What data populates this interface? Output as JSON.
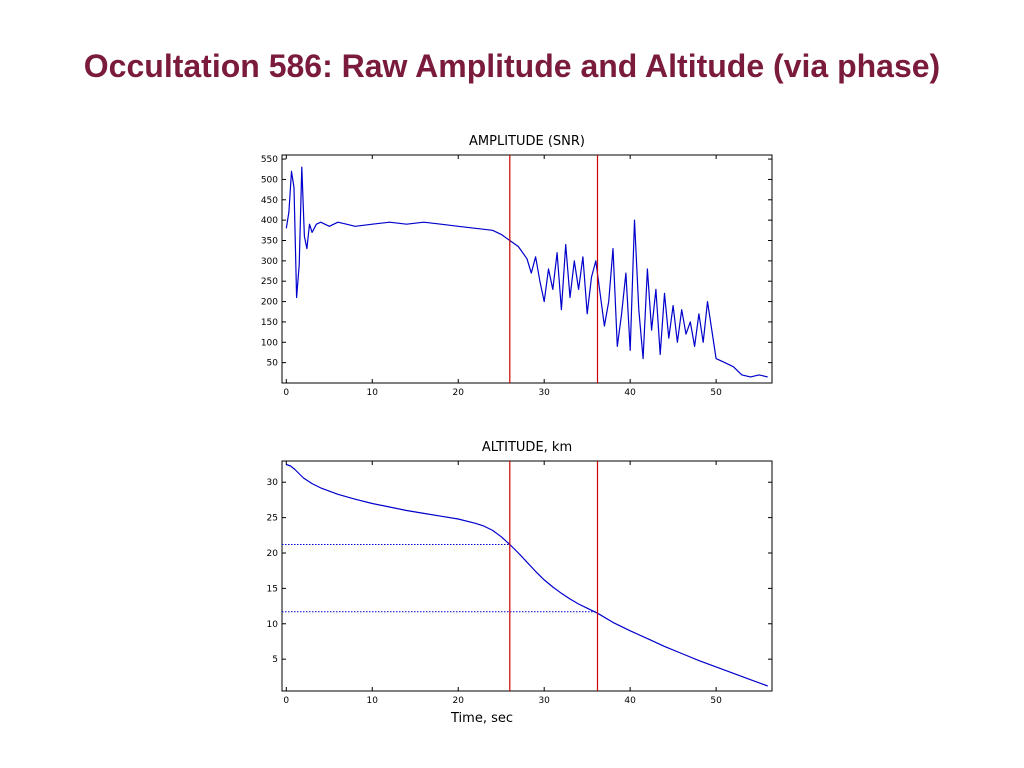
{
  "slide": {
    "title": "Occultation 586: Raw Amplitude and Altitude (via phase)",
    "title_color": "#7a1a3c"
  },
  "colors": {
    "series": "#0000cc",
    "marker": "#cc0000"
  },
  "chart_data": [
    {
      "type": "line",
      "title": "AMPLITUDE (SNR)",
      "xlabel": "",
      "ylabel": "",
      "xlim": [
        -0.5,
        56.5
      ],
      "ylim": [
        0,
        560
      ],
      "xticks": [
        0,
        10,
        20,
        30,
        40,
        50
      ],
      "yticks": [
        50,
        100,
        150,
        200,
        250,
        300,
        350,
        400,
        450,
        500,
        550
      ],
      "grid": false,
      "vertical_markers": [
        26,
        36.2
      ],
      "series": [
        {
          "x": [
            0,
            0.3,
            0.6,
            0.9,
            1.2,
            1.5,
            1.8,
            2.1,
            2.4,
            2.7,
            3,
            3.5,
            4,
            5,
            6,
            7,
            8,
            10,
            12,
            14,
            16,
            18,
            20,
            22,
            24,
            25,
            26,
            27,
            28,
            28.5,
            29,
            29.5,
            30,
            30.5,
            31,
            31.5,
            32,
            32.5,
            33,
            33.5,
            34,
            34.5,
            35,
            35.5,
            36,
            36.5,
            37,
            37.5,
            38,
            38.5,
            39,
            39.5,
            40,
            40.5,
            41,
            41.5,
            42,
            42.5,
            43,
            43.5,
            44,
            44.5,
            45,
            45.5,
            46,
            46.5,
            47,
            47.5,
            48,
            48.5,
            49,
            49.5,
            50,
            51,
            52,
            53,
            54,
            55,
            56
          ],
          "values": [
            380,
            420,
            520,
            480,
            210,
            290,
            530,
            360,
            330,
            390,
            370,
            390,
            395,
            385,
            395,
            390,
            385,
            390,
            395,
            390,
            395,
            390,
            385,
            380,
            375,
            365,
            350,
            335,
            305,
            270,
            310,
            250,
            200,
            280,
            230,
            320,
            180,
            340,
            210,
            300,
            230,
            310,
            170,
            260,
            300,
            220,
            140,
            200,
            330,
            90,
            170,
            270,
            80,
            400,
            180,
            60,
            280,
            130,
            230,
            70,
            220,
            110,
            190,
            100,
            180,
            120,
            150,
            90,
            170,
            100,
            200,
            130,
            60,
            50,
            40,
            20,
            15,
            20,
            15
          ]
        }
      ]
    },
    {
      "type": "line",
      "title": "ALTITUDE, km",
      "xlabel": "Time, sec",
      "ylabel": "",
      "xlim": [
        -0.5,
        56.5
      ],
      "ylim": [
        0.5,
        33
      ],
      "xticks": [
        0,
        10,
        20,
        30,
        40,
        50
      ],
      "yticks": [
        5,
        10,
        15,
        20,
        25,
        30
      ],
      "grid": false,
      "vertical_markers": [
        26,
        36.2
      ],
      "horizontal_markers": [
        21.2,
        11.7
      ],
      "series": [
        {
          "x": [
            0,
            0.5,
            1,
            2,
            3,
            4,
            6,
            8,
            10,
            12,
            14,
            16,
            18,
            20,
            22,
            23,
            24,
            25,
            26,
            27,
            28,
            29,
            30,
            31,
            32,
            33,
            34,
            35,
            36.2,
            38,
            40,
            42,
            44,
            46,
            48,
            50,
            52,
            54,
            56
          ],
          "values": [
            32.5,
            32.3,
            31.8,
            30.6,
            29.8,
            29.2,
            28.3,
            27.6,
            27,
            26.5,
            26,
            25.6,
            25.2,
            24.8,
            24.2,
            23.8,
            23.2,
            22.3,
            21.2,
            20,
            18.7,
            17.4,
            16.2,
            15.2,
            14.3,
            13.5,
            12.8,
            12.2,
            11.5,
            10.2,
            9,
            7.9,
            6.8,
            5.8,
            4.8,
            3.9,
            3,
            2.1,
            1.2
          ]
        }
      ]
    }
  ]
}
